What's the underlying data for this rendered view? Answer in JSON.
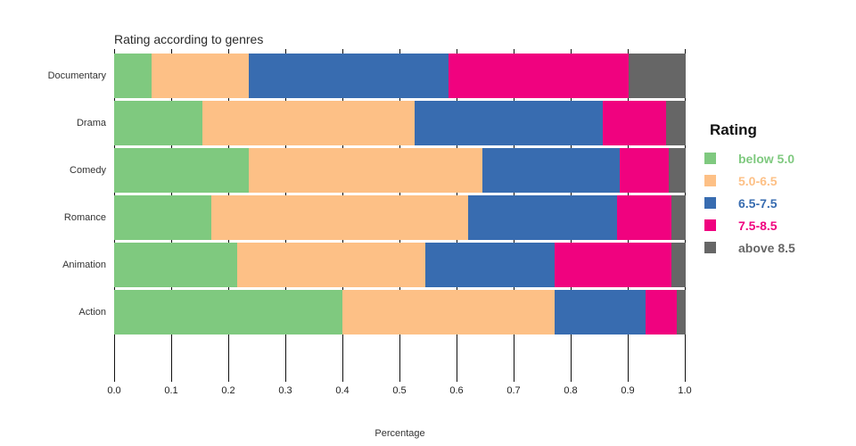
{
  "title": "Rating according to genres",
  "x_axis": {
    "label": "Percentage",
    "tick_labels": [
      "0.0",
      "0.1",
      "0.2",
      "0.3",
      "0.4",
      "0.5",
      "0.6",
      "0.7",
      "0.8",
      "0.9",
      "1.0"
    ]
  },
  "legend": {
    "title": "Rating",
    "items": [
      {
        "label": "below 5.0",
        "color": "#7fc97f"
      },
      {
        "label": "5.0-6.5",
        "color": "#fdc086"
      },
      {
        "label": "6.5-7.5",
        "color": "#386cb0"
      },
      {
        "label": "7.5-8.5",
        "color": "#f0027f"
      },
      {
        "label": "above 8.5",
        "color": "#666666"
      }
    ]
  },
  "chart_data": {
    "type": "bar",
    "orientation": "horizontal",
    "stacked": true,
    "title": "Rating according to genres",
    "xlabel": "Percentage",
    "ylabel": "",
    "xlim": [
      0,
      1
    ],
    "grid": "vertical black gridlines at every 0.1, visible in gaps between bars",
    "legend_position": "right",
    "categories": [
      "Documentary",
      "Drama",
      "Comedy",
      "Romance",
      "Animation",
      "Action"
    ],
    "series": [
      {
        "name": "below 5.0",
        "color": "#7fc97f",
        "values": [
          0.065,
          0.155,
          0.235,
          0.17,
          0.215,
          0.4
        ]
      },
      {
        "name": "5.0-6.5",
        "color": "#fdc086",
        "values": [
          0.17,
          0.37,
          0.41,
          0.45,
          0.33,
          0.37
        ]
      },
      {
        "name": "6.5-7.5",
        "color": "#386cb0",
        "values": [
          0.35,
          0.33,
          0.24,
          0.26,
          0.225,
          0.16
        ]
      },
      {
        "name": "7.5-8.5",
        "color": "#f0027f",
        "values": [
          0.315,
          0.11,
          0.085,
          0.095,
          0.205,
          0.055
        ]
      },
      {
        "name": "above 8.5",
        "color": "#666666",
        "values": [
          0.1,
          0.035,
          0.03,
          0.025,
          0.025,
          0.015
        ]
      }
    ]
  }
}
